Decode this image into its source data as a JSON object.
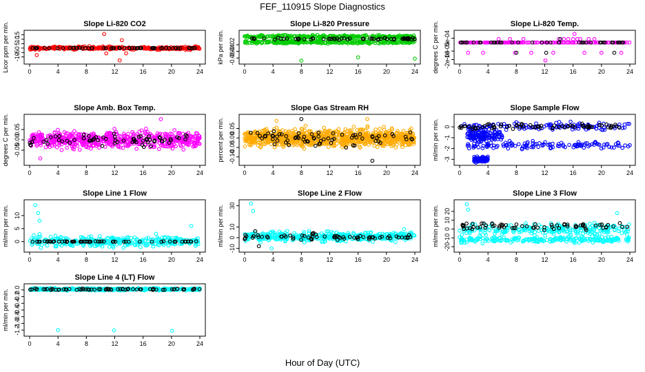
{
  "figure": {
    "title": "FEF_110915  Slope Diagnostics",
    "xlabel": "Hour of Day (UTC)"
  },
  "chart_data": [
    {
      "type": "scatter",
      "title": "Slope Li-820 CO2",
      "ylabel": "Licor ppm per min.",
      "xlim": [
        0,
        24
      ],
      "ylim": [
        -15,
        17
      ],
      "xticks": [
        0,
        4,
        8,
        12,
        16,
        20,
        24
      ],
      "yticks": [
        {
          "v": -10,
          "t": "-10"
        },
        {
          "v": -5,
          "t": "-5"
        },
        {
          "v": 0,
          "t": "0"
        },
        {
          "v": 5,
          "t": "5"
        },
        {
          "v": 10,
          "t": "10"
        },
        {
          "v": 15,
          "t": "15"
        }
      ],
      "series": [
        {
          "color": "#ff0000",
          "gen": {
            "n": 320,
            "segs": [
              [
                0,
                24,
                0,
                1.5
              ]
            ],
            "extra": [
              [
                10.5,
                16
              ],
              [
                13.0,
                9
              ],
              [
                12.7,
                -14
              ],
              [
                13.6,
                -6
              ],
              [
                1.0,
                -8
              ],
              [
                10.8,
                -6
              ]
            ]
          }
        },
        {
          "color": "#000000",
          "gen": {
            "n": 60,
            "segs": [
              [
                0,
                24,
                0,
                0.3
              ]
            ]
          }
        }
      ]
    },
    {
      "type": "scatter",
      "title": "Slope Li-820 Pressure",
      "ylabel": "kPa per min.",
      "xlim": [
        0,
        24
      ],
      "ylim": [
        -0.07,
        0.015
      ],
      "xticks": [
        0,
        4,
        8,
        12,
        16,
        20,
        24
      ],
      "yticks": [
        {
          "v": -0.06,
          "t": "-0.06"
        },
        {
          "v": -0.04,
          "t": "-0.04"
        },
        {
          "v": -0.02,
          "t": "-0.02"
        }
      ],
      "series": [
        {
          "color": "#00cc00",
          "gen": {
            "n": 560,
            "segs": [
              [
                0,
                24,
                0.004,
                0.004
              ],
              [
                0,
                24,
                -0.012,
                0.004
              ]
            ],
            "extra": [
              [
                8.0,
                -0.068
              ],
              [
                16.0,
                -0.058
              ],
              [
                24.0,
                -0.062
              ]
            ]
          }
        },
        {
          "color": "#000000",
          "gen": {
            "n": 60,
            "segs": [
              [
                0,
                24,
                -0.002,
                0.003
              ]
            ]
          }
        }
      ]
    },
    {
      "type": "scatter",
      "title": "Slope Li-820 Temp.",
      "ylabel": "degrees C per min.",
      "xlim": [
        0,
        24
      ],
      "ylim": [
        -0.0022,
        0.0011
      ],
      "xticks": [
        0,
        4,
        8,
        12,
        16,
        20,
        24
      ],
      "yticks": [
        {
          "v": -0.002,
          "t": "-2e-03"
        },
        {
          "v": -0.001,
          "t": "-1e-03"
        },
        {
          "v": 0.0005,
          "t": "5e-04"
        }
      ],
      "series": [
        {
          "color": "#ff00ff",
          "gen": {
            "n": 180,
            "segs": [
              [
                0,
                24,
                0,
                0
              ]
            ],
            "extra": [
              [
                1.2,
                -0.0012
              ],
              [
                3.3,
                -0.0012
              ],
              [
                5.5,
                0.0004
              ],
              [
                7.1,
                0.0004
              ],
              [
                7.8,
                -0.0012
              ],
              [
                10.1,
                -0.0012
              ],
              [
                12.1,
                -0.0021
              ],
              [
                13.2,
                -0.0012
              ],
              [
                14.0,
                0.0004
              ],
              [
                14.7,
                0.0004
              ],
              [
                15.3,
                0.0004
              ],
              [
                16.0,
                0.0004
              ],
              [
                16.6,
                0.0004
              ],
              [
                17.0,
                0.0004
              ],
              [
                17.6,
                -0.0012
              ],
              [
                18.2,
                0.0004
              ],
              [
                19.0,
                0.0004
              ],
              [
                20.0,
                -0.0012
              ],
              [
                16.2,
                0.001
              ],
              [
                9.0,
                0.0004
              ],
              [
                22.8,
                -0.0012
              ]
            ]
          }
        },
        {
          "color": "#000000",
          "gen": {
            "n": 40,
            "segs": [
              [
                0,
                24,
                0,
                0
              ]
            ],
            "extra": [
              [
                8.0,
                -0.0012
              ],
              [
                12.2,
                -0.0012
              ],
              [
                14.2,
                0.0004
              ],
              [
                21.8,
                -0.0012
              ]
            ]
          }
        }
      ]
    },
    {
      "type": "scatter",
      "title": "Slope Amb. Box Temp.",
      "ylabel": "degrees C per min.",
      "xlim": [
        0,
        24
      ],
      "ylim": [
        -0.11,
        0.11
      ],
      "xticks": [
        0,
        4,
        8,
        12,
        16,
        20,
        24
      ],
      "yticks": [
        {
          "v": -0.05,
          "t": "-0.05"
        },
        {
          "v": 0,
          "t": "0.00"
        },
        {
          "v": 0.05,
          "t": "0.05"
        }
      ],
      "series": [
        {
          "color": "#ff00ff",
          "gen": {
            "n": 600,
            "segs": [
              [
                0,
                24,
                0,
                0.035
              ]
            ],
            "extra": [
              [
                1.5,
                -0.09
              ],
              [
                18.5,
                0.1
              ]
            ]
          }
        },
        {
          "color": "#000000",
          "gen": {
            "n": 70,
            "segs": [
              [
                0,
                24,
                0,
                0.025
              ]
            ]
          }
        }
      ]
    },
    {
      "type": "scatter",
      "title": "Slope Gas Stream RH",
      "ylabel": "percent per min.",
      "xlim": [
        0,
        24
      ],
      "ylim": [
        -0.13,
        0.11
      ],
      "xticks": [
        0,
        4,
        8,
        12,
        16,
        20,
        24
      ],
      "yticks": [
        {
          "v": -0.1,
          "t": "-0.10"
        },
        {
          "v": -0.05,
          "t": "-0.05"
        },
        {
          "v": 0,
          "t": "0.00"
        },
        {
          "v": 0.05,
          "t": "0.05"
        }
      ],
      "series": [
        {
          "color": "#ffaa00",
          "gen": {
            "n": 900,
            "segs": [
              [
                0,
                24,
                0,
                0.04
              ]
            ],
            "extra": [
              [
                17.3,
                0.1
              ],
              [
                4.5,
                0.09
              ]
            ]
          }
        },
        {
          "color": "#000000",
          "gen": {
            "n": 70,
            "segs": [
              [
                0,
                24,
                0,
                0.035
              ]
            ],
            "extra": [
              [
                8.0,
                0.1
              ],
              [
                18.0,
                -0.12
              ]
            ]
          }
        }
      ]
    },
    {
      "type": "scatter",
      "title": "Slope Sample Flow",
      "ylabel": "ml/min per min.",
      "xlim": [
        0,
        24
      ],
      "ylim": [
        -3.3,
        0.9
      ],
      "xticks": [
        0,
        4,
        8,
        12,
        16,
        20,
        24
      ],
      "yticks": [
        {
          "v": -3,
          "t": "-3"
        },
        {
          "v": -2,
          "t": "-2"
        },
        {
          "v": -1,
          "t": "-1"
        },
        {
          "v": 0,
          "t": "0"
        }
      ],
      "series": [
        {
          "color": "#0000ff",
          "gen": {
            "n": 500,
            "segs": [
              [
                0,
                24,
                0.05,
                0.35
              ],
              [
                1,
                24,
                -1.7,
                0.3
              ],
              [
                1,
                6,
                -0.8,
                0.5
              ],
              [
                2,
                4,
                -3.0,
                0.2
              ]
            ]
          }
        },
        {
          "color": "#000000",
          "gen": {
            "n": 70,
            "segs": [
              [
                0,
                24,
                0.05,
                0.2
              ]
            ]
          }
        }
      ]
    },
    {
      "type": "scatter",
      "title": "Slope Line 1 Flow",
      "ylabel": "ml/min per min.",
      "xlim": [
        0,
        24
      ],
      "ylim": [
        -3,
        15
      ],
      "xticks": [
        0,
        4,
        8,
        12,
        16,
        20,
        24
      ],
      "yticks": [
        {
          "v": 0,
          "t": "0"
        },
        {
          "v": 5,
          "t": "5"
        },
        {
          "v": 10,
          "t": "10"
        }
      ],
      "series": [
        {
          "color": "#00ffff",
          "gen": {
            "n": 330,
            "segs": [
              [
                0,
                24,
                0,
                1.8
              ]
            ],
            "extra": [
              [
                0.8,
                14
              ],
              [
                1.2,
                11
              ],
              [
                1.4,
                8
              ],
              [
                22.8,
                6
              ]
            ]
          }
        },
        {
          "color": "#000000",
          "gen": {
            "n": 60,
            "segs": [
              [
                0,
                24,
                0,
                0.1
              ]
            ]
          }
        }
      ]
    },
    {
      "type": "scatter",
      "title": "Slope Line 2 Flow",
      "ylabel": "ml/min per min.",
      "xlim": [
        0,
        24
      ],
      "ylim": [
        -11,
        33
      ],
      "xticks": [
        0,
        4,
        8,
        12,
        16,
        20,
        24
      ],
      "yticks": [
        {
          "v": -10,
          "t": "-10"
        },
        {
          "v": 0,
          "t": "0"
        },
        {
          "v": 10,
          "t": "10"
        },
        {
          "v": 30,
          "t": "30"
        }
      ],
      "series": [
        {
          "color": "#00ffff",
          "gen": {
            "n": 420,
            "segs": [
              [
                0,
                24,
                1,
                4
              ]
            ],
            "extra": [
              [
                0.9,
                32
              ],
              [
                1.2,
                25
              ],
              [
                3.8,
                -10
              ],
              [
                22.5,
                8
              ],
              [
                23.5,
                5
              ]
            ]
          }
        },
        {
          "color": "#000000",
          "gen": {
            "n": 70,
            "segs": [
              [
                0,
                24,
                0.5,
                2.5
              ]
            ],
            "extra": [
              [
                1.5,
                6
              ],
              [
                2.0,
                -8
              ]
            ]
          }
        }
      ]
    },
    {
      "type": "scatter",
      "title": "Slope Line 3 Flow",
      "ylabel": "ml/min per min.",
      "xlim": [
        0,
        24
      ],
      "ylim": [
        -23,
        30
      ],
      "xticks": [
        0,
        4,
        8,
        12,
        16,
        20,
        24
      ],
      "yticks": [
        {
          "v": -20,
          "t": "-20"
        },
        {
          "v": -10,
          "t": "-10"
        },
        {
          "v": 0,
          "t": "0"
        },
        {
          "v": 10,
          "t": "10"
        },
        {
          "v": 20,
          "t": "20"
        }
      ],
      "series": [
        {
          "color": "#00ffff",
          "gen": {
            "n": 460,
            "segs": [
              [
                0,
                24,
                0,
                6
              ],
              [
                0,
                24,
                -12,
                3
              ]
            ],
            "extra": [
              [
                1.0,
                28
              ],
              [
                1.2,
                22
              ],
              [
                22.2,
                18
              ]
            ]
          }
        },
        {
          "color": "#000000",
          "gen": {
            "n": 70,
            "segs": [
              [
                0,
                24,
                3,
                3.5
              ]
            ]
          }
        }
      ]
    },
    {
      "type": "scatter",
      "title": "Slope Line 4 (LT) Flow",
      "ylabel": "ml/min per min.",
      "xlim": [
        0,
        24
      ],
      "ylim": [
        -1.3,
        0.1
      ],
      "xticks": [
        0,
        4,
        8,
        12,
        16,
        20,
        24
      ],
      "yticks": [
        {
          "v": -1.2,
          "t": "-1.2"
        },
        {
          "v": -1.0,
          "t": "-1.0"
        },
        {
          "v": -0.8,
          "t": "-0.8"
        },
        {
          "v": -0.6,
          "t": "-0.6"
        },
        {
          "v": -0.4,
          "t": "-0.4"
        },
        {
          "v": -0.2,
          "t": "-0.2"
        },
        {
          "v": 0,
          "t": "0.0"
        }
      ],
      "series": [
        {
          "color": "#00ffff",
          "gen": {
            "n": 420,
            "segs": [
              [
                0,
                24,
                0.02,
                0.03
              ]
            ],
            "extra": [
              [
                4.0,
                -1.2
              ],
              [
                11.9,
                -1.21
              ],
              [
                20.1,
                -1.22
              ]
            ]
          }
        },
        {
          "color": "#000000",
          "gen": {
            "n": 70,
            "segs": [
              [
                0,
                24,
                0.02,
                0.02
              ]
            ]
          }
        }
      ]
    }
  ]
}
